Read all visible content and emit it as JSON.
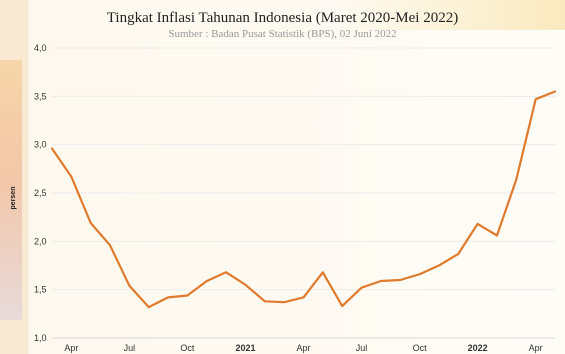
{
  "chart_data": {
    "type": "line",
    "title": "Tingkat Inflasi Tahunan Indonesia (Maret 2020-Mei 2022)",
    "subtitle": "Sumber : Badan Pusat Statistik (BPS), 02 Juni 2022",
    "xlabel": "",
    "ylabel": "persen",
    "ylim": [
      1.0,
      4.0
    ],
    "yticks": [
      "1,0",
      "1,5",
      "2,0",
      "2,5",
      "3,0",
      "3,5",
      "4,0"
    ],
    "x_tick_labels": [
      {
        "label": "Apr",
        "bold": false,
        "index": 1
      },
      {
        "label": "Jul",
        "bold": false,
        "index": 4
      },
      {
        "label": "Oct",
        "bold": false,
        "index": 7
      },
      {
        "label": "2021",
        "bold": true,
        "index": 10
      },
      {
        "label": "Apr",
        "bold": false,
        "index": 13
      },
      {
        "label": "Jul",
        "bold": false,
        "index": 16
      },
      {
        "label": "Oct",
        "bold": false,
        "index": 19
      },
      {
        "label": "2022",
        "bold": true,
        "index": 22
      },
      {
        "label": "Apr",
        "bold": false,
        "index": 25
      }
    ],
    "grid": true,
    "color": "#e07b2e",
    "series": [
      {
        "name": "",
        "x": [
          "2020-03",
          "2020-04",
          "2020-05",
          "2020-06",
          "2020-07",
          "2020-08",
          "2020-09",
          "2020-10",
          "2020-11",
          "2020-12",
          "2021-01",
          "2021-02",
          "2021-03",
          "2021-04",
          "2021-05",
          "2021-06",
          "2021-07",
          "2021-08",
          "2021-09",
          "2021-10",
          "2021-11",
          "2021-12",
          "2022-01",
          "2022-02",
          "2022-03",
          "2022-04",
          "2022-05"
        ],
        "values": [
          2.96,
          2.67,
          2.19,
          1.96,
          1.54,
          1.32,
          1.42,
          1.44,
          1.59,
          1.68,
          1.55,
          1.38,
          1.37,
          1.42,
          1.68,
          1.33,
          1.52,
          1.59,
          1.6,
          1.66,
          1.75,
          1.87,
          2.18,
          2.06,
          2.64,
          3.47,
          3.55
        ]
      }
    ]
  }
}
